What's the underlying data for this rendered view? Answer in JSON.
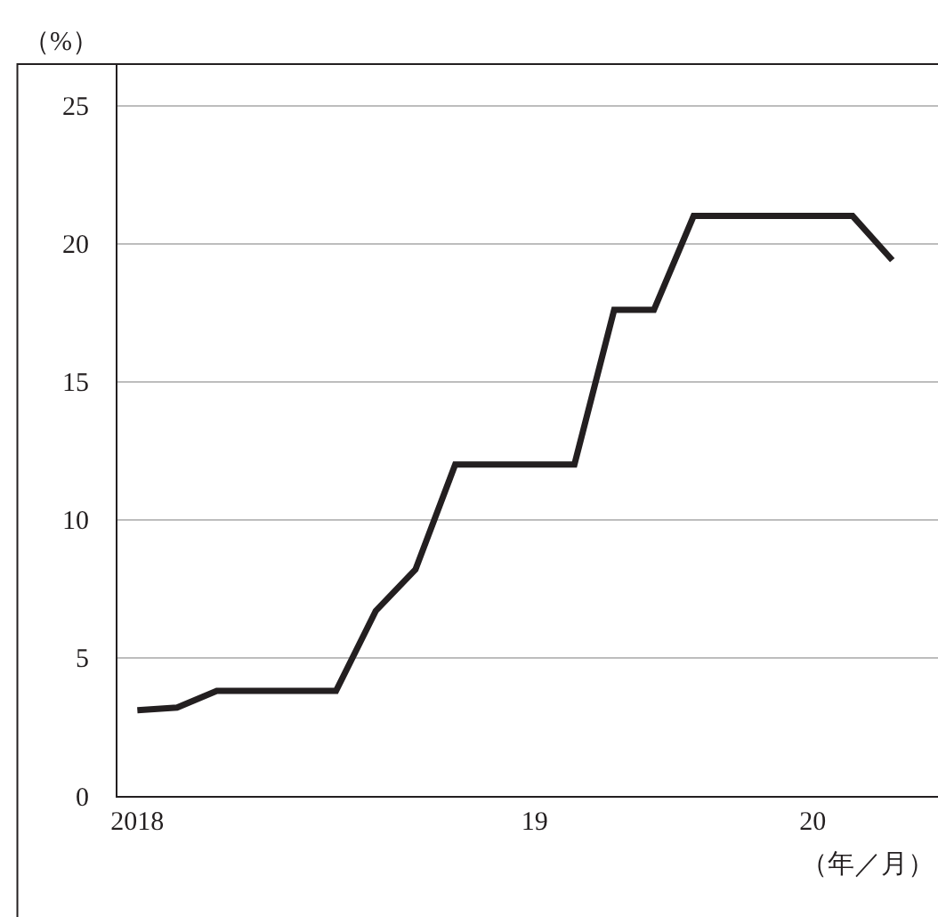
{
  "chart_data": {
    "type": "line",
    "xlabel": "（年／月）",
    "ylabel": "（%）",
    "categories": [
      "2018",
      null,
      null,
      null,
      null,
      null,
      null,
      null,
      null,
      null,
      "19",
      null,
      null,
      null,
      null,
      null,
      null,
      "20",
      null,
      null
    ],
    "series": [
      {
        "color": "#231f20",
        "values": [
          3.1,
          3.2,
          3.8,
          3.8,
          3.8,
          3.8,
          6.7,
          8.2,
          12.0,
          12.0,
          12.0,
          12.0,
          17.6,
          17.6,
          21.0,
          21.0,
          21.0,
          21.0,
          21.0,
          19.4
        ]
      }
    ],
    "ylim": [
      0,
      26.5
    ],
    "yticks": [
      0,
      5,
      10,
      15,
      20,
      25
    ],
    "grid": "y",
    "legend": false,
    "marker": "none",
    "line_style": "solid"
  }
}
